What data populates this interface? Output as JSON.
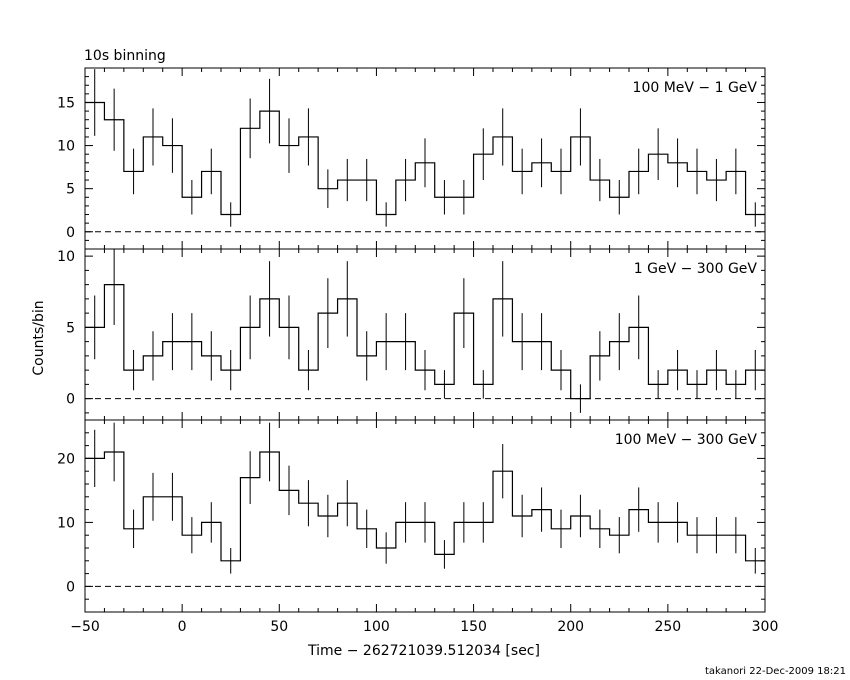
{
  "title": "10s binning",
  "ylabel": "Counts/bin",
  "xlabel": "Time − 262721039.512034 [sec]",
  "footer": "takanori 22-Dec-2009 18:21",
  "chart_data": {
    "type": "step",
    "x_range": [
      -50,
      300
    ],
    "x_ticks": [
      -50,
      0,
      50,
      100,
      150,
      200,
      250,
      300
    ],
    "x_tick_labels": [
      "−50",
      "0",
      "50",
      "100",
      "150",
      "200",
      "250",
      "300"
    ],
    "bin_width": 10,
    "bin_centers": [
      -45,
      -35,
      -25,
      -15,
      -5,
      5,
      15,
      25,
      35,
      45,
      55,
      65,
      75,
      85,
      95,
      105,
      115,
      125,
      135,
      145,
      155,
      165,
      175,
      185,
      195,
      205,
      215,
      225,
      235,
      245,
      255,
      265,
      275,
      285,
      295
    ],
    "panels": [
      {
        "label": "100 MeV − 1 GeV",
        "ylim": [
          -2,
          19
        ],
        "y_ticks": [
          0,
          5,
          10,
          15
        ],
        "values": [
          15,
          13,
          7,
          11,
          10,
          4,
          7,
          2,
          12,
          14,
          10,
          11,
          5,
          6,
          6,
          2,
          6,
          8,
          4,
          4,
          9,
          11,
          7,
          8,
          7,
          11,
          6,
          4,
          7,
          9,
          8,
          7,
          6,
          7,
          2
        ]
      },
      {
        "label": "1 GeV − 300 GeV",
        "ylim": [
          -1.5,
          10.5
        ],
        "y_ticks": [
          0,
          5,
          10
        ],
        "values": [
          5,
          8,
          2,
          3,
          4,
          4,
          3,
          2,
          5,
          7,
          5,
          2,
          6,
          7,
          3,
          4,
          4,
          2,
          1,
          6,
          1,
          7,
          4,
          4,
          2,
          0,
          3,
          4,
          5,
          1,
          2,
          1,
          2,
          1,
          2
        ]
      },
      {
        "label": "100 MeV − 300 GeV",
        "ylim": [
          -4,
          26
        ],
        "y_ticks": [
          0,
          10,
          20
        ],
        "values": [
          20,
          21,
          9,
          14,
          14,
          8,
          10,
          4,
          17,
          21,
          15,
          13,
          11,
          13,
          9,
          6,
          10,
          10,
          5,
          10,
          10,
          18,
          11,
          12,
          9,
          11,
          9,
          8,
          12,
          10,
          10,
          8,
          8,
          8,
          4
        ]
      }
    ]
  }
}
